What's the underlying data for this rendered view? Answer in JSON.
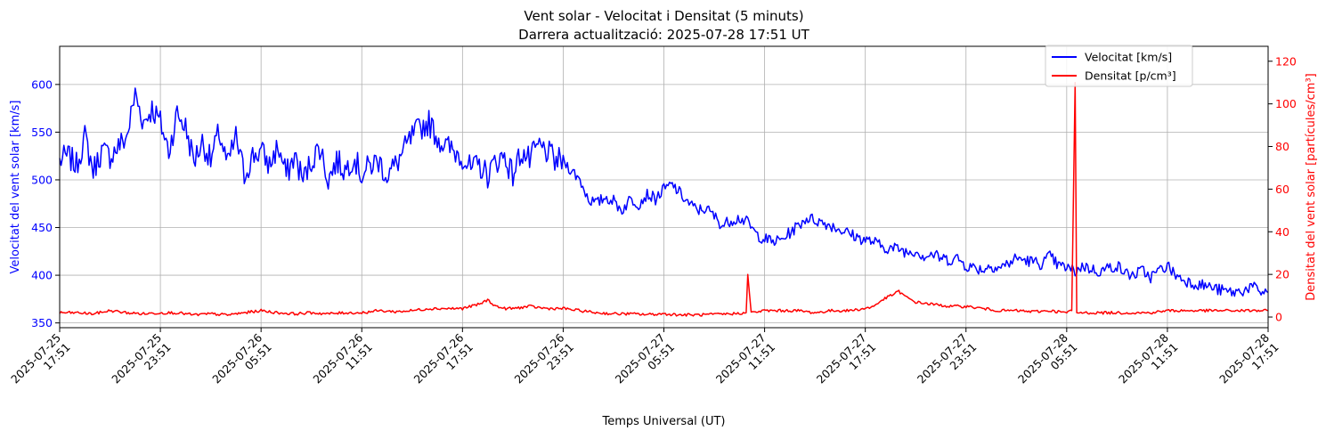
{
  "chart_data": {
    "type": "line",
    "title": "Vent solar - Velocitat i Densitat (5 minuts)",
    "subtitle": "Darrera actualització: 2025-07-28 17:51 UT",
    "xlabel": "Temps Universal (UT)",
    "ylabel_left": "Velocitat del vent solar [km/s]",
    "ylabel_right": "Densitat del vent solar [partícules/cm³]",
    "x_ticks": [
      [
        "2025-07-25",
        "17:51"
      ],
      [
        "2025-07-25",
        "23:51"
      ],
      [
        "2025-07-26",
        "05:51"
      ],
      [
        "2025-07-26",
        "11:51"
      ],
      [
        "2025-07-26",
        "17:51"
      ],
      [
        "2025-07-26",
        "23:51"
      ],
      [
        "2025-07-27",
        "05:51"
      ],
      [
        "2025-07-27",
        "11:51"
      ],
      [
        "2025-07-27",
        "17:51"
      ],
      [
        "2025-07-27",
        "23:51"
      ],
      [
        "2025-07-28",
        "05:51"
      ],
      [
        "2025-07-28",
        "11:51"
      ],
      [
        "2025-07-28",
        "17:51"
      ]
    ],
    "x_unit": "hours from 2025-07-25 17:51 UT",
    "xlim": [
      0,
      72
    ],
    "ylim_left": [
      345,
      640
    ],
    "yticks_left": [
      350,
      400,
      450,
      500,
      550,
      600
    ],
    "ylim_right": [
      -5,
      127
    ],
    "yticks_right": [
      0,
      20,
      40,
      60,
      80,
      100,
      120
    ],
    "grid": true,
    "legend_position": "top-right",
    "series": [
      {
        "name": "Velocitat [km/s]",
        "axis": "left",
        "color": "#0000ff",
        "points": [
          [
            0,
            520
          ],
          [
            0.5,
            525
          ],
          [
            1,
            515
          ],
          [
            1.5,
            545
          ],
          [
            2,
            510
          ],
          [
            2.5,
            530
          ],
          [
            3,
            525
          ],
          [
            3.5,
            535
          ],
          [
            4,
            545
          ],
          [
            4.5,
            590
          ],
          [
            5,
            560
          ],
          [
            5.5,
            575
          ],
          [
            6,
            560
          ],
          [
            6.5,
            530
          ],
          [
            7,
            570
          ],
          [
            7.5,
            555
          ],
          [
            8,
            520
          ],
          [
            8.5,
            540
          ],
          [
            9,
            520
          ],
          [
            9.5,
            550
          ],
          [
            10,
            515
          ],
          [
            10.5,
            545
          ],
          [
            11,
            505
          ],
          [
            11.5,
            525
          ],
          [
            12,
            530
          ],
          [
            12.5,
            515
          ],
          [
            13,
            535
          ],
          [
            13.5,
            505
          ],
          [
            14,
            525
          ],
          [
            14.5,
            500
          ],
          [
            15,
            520
          ],
          [
            15.5,
            535
          ],
          [
            16,
            500
          ],
          [
            16.5,
            520
          ],
          [
            17,
            510
          ],
          [
            17.5,
            525
          ],
          [
            18,
            505
          ],
          [
            18.5,
            515
          ],
          [
            19,
            520
          ],
          [
            19.5,
            505
          ],
          [
            20,
            515
          ],
          [
            20.5,
            530
          ],
          [
            21,
            545
          ],
          [
            21.5,
            555
          ],
          [
            22,
            560
          ],
          [
            22.5,
            545
          ],
          [
            23,
            535
          ],
          [
            23.5,
            530
          ],
          [
            24,
            525
          ],
          [
            24.5,
            510
          ],
          [
            25,
            515
          ],
          [
            25.5,
            505
          ],
          [
            26,
            520
          ],
          [
            26.5,
            525
          ],
          [
            27,
            505
          ],
          [
            27.5,
            530
          ],
          [
            28,
            520
          ],
          [
            28.5,
            535
          ],
          [
            29,
            530
          ],
          [
            29.5,
            520
          ],
          [
            30,
            520
          ],
          [
            30.5,
            510
          ],
          [
            31,
            500
          ],
          [
            31.5,
            480
          ],
          [
            32,
            475
          ],
          [
            32.5,
            482
          ],
          [
            33,
            478
          ],
          [
            33.5,
            468
          ],
          [
            34,
            480
          ],
          [
            34.5,
            475
          ],
          [
            35,
            485
          ],
          [
            35.5,
            480
          ],
          [
            36,
            490
          ],
          [
            36.5,
            495
          ],
          [
            37,
            485
          ],
          [
            37.5,
            475
          ],
          [
            38,
            468
          ],
          [
            38.5,
            470
          ],
          [
            39,
            462
          ],
          [
            39.5,
            452
          ],
          [
            40,
            458
          ],
          [
            40.5,
            460
          ],
          [
            41,
            455
          ],
          [
            41.5,
            443
          ],
          [
            42,
            438
          ],
          [
            42.5,
            435
          ],
          [
            43,
            437
          ],
          [
            44,
            452
          ],
          [
            44.5,
            460
          ],
          [
            45,
            458
          ],
          [
            45.5,
            455
          ],
          [
            46,
            452
          ],
          [
            46.5,
            448
          ],
          [
            47,
            444
          ],
          [
            47.5,
            440
          ],
          [
            48,
            437
          ],
          [
            48.5,
            435
          ],
          [
            49,
            430
          ],
          [
            49.5,
            428
          ],
          [
            50,
            428
          ],
          [
            50.5,
            424
          ],
          [
            51,
            426
          ],
          [
            51.5,
            420
          ],
          [
            52,
            422
          ],
          [
            52.5,
            418
          ],
          [
            53,
            416
          ],
          [
            53.5,
            418
          ],
          [
            54,
            410
          ],
          [
            54.5,
            408
          ],
          [
            55,
            406
          ],
          [
            55.5,
            410
          ],
          [
            56,
            408
          ],
          [
            56.5,
            412
          ],
          [
            57,
            418
          ],
          [
            57.5,
            416
          ],
          [
            58,
            414
          ],
          [
            58.5,
            412
          ],
          [
            59,
            420
          ],
          [
            59.5,
            410
          ],
          [
            60,
            408
          ],
          [
            60.5,
            404
          ],
          [
            61,
            410
          ],
          [
            61.5,
            406
          ],
          [
            62,
            404
          ],
          [
            62.5,
            408
          ],
          [
            63,
            410
          ],
          [
            63.5,
            402
          ],
          [
            64,
            400
          ],
          [
            64.5,
            405
          ],
          [
            65,
            398
          ],
          [
            65.5,
            405
          ],
          [
            66,
            410
          ],
          [
            66.5,
            400
          ],
          [
            67,
            395
          ],
          [
            67.5,
            392
          ],
          [
            68,
            390
          ],
          [
            68.5,
            388
          ],
          [
            69,
            385
          ],
          [
            69.5,
            383
          ],
          [
            70,
            382
          ],
          [
            70.5,
            384
          ],
          [
            71,
            388
          ],
          [
            71.5,
            383
          ],
          [
            72,
            382
          ]
        ]
      },
      {
        "name": "Densitat [p/cm³]",
        "axis": "right",
        "color": "#ff0000",
        "points": [
          [
            0,
            2
          ],
          [
            1,
            2
          ],
          [
            2,
            1.5
          ],
          [
            3,
            3
          ],
          [
            4,
            2
          ],
          [
            5,
            1.5
          ],
          [
            6,
            2
          ],
          [
            7,
            2
          ],
          [
            8,
            1
          ],
          [
            9,
            1.5
          ],
          [
            10,
            1
          ],
          [
            11,
            2
          ],
          [
            12,
            3
          ],
          [
            13,
            2
          ],
          [
            14,
            1.5
          ],
          [
            15,
            2
          ],
          [
            16,
            1.5
          ],
          [
            17,
            2
          ],
          [
            18,
            2
          ],
          [
            19,
            3
          ],
          [
            20,
            2.5
          ],
          [
            21,
            3
          ],
          [
            22,
            4
          ],
          [
            23,
            4
          ],
          [
            24,
            4
          ],
          [
            24.5,
            5
          ],
          [
            25,
            6
          ],
          [
            25.5,
            8
          ],
          [
            26,
            5
          ],
          [
            26.5,
            4
          ],
          [
            27,
            4
          ],
          [
            28,
            5
          ],
          [
            29,
            4
          ],
          [
            30,
            4
          ],
          [
            31,
            3
          ],
          [
            32,
            2
          ],
          [
            33,
            1.5
          ],
          [
            34,
            1.5
          ],
          [
            35,
            1.2
          ],
          [
            36,
            1.5
          ],
          [
            37,
            1
          ],
          [
            38,
            1
          ],
          [
            39,
            1.2
          ],
          [
            40,
            1.5
          ],
          [
            40.9,
            2
          ],
          [
            41,
            20
          ],
          [
            41.2,
            2
          ],
          [
            42,
            3
          ],
          [
            43,
            3
          ],
          [
            44,
            3
          ],
          [
            45,
            2
          ],
          [
            46,
            3
          ],
          [
            47,
            3
          ],
          [
            48,
            4
          ],
          [
            48.5,
            5
          ],
          [
            49,
            8
          ],
          [
            49.5,
            10
          ],
          [
            50,
            12
          ],
          [
            50.5,
            9
          ],
          [
            51,
            7
          ],
          [
            52,
            6
          ],
          [
            53,
            5
          ],
          [
            54,
            5
          ],
          [
            55,
            4
          ],
          [
            56,
            3
          ],
          [
            57,
            3
          ],
          [
            58,
            2.5
          ],
          [
            59,
            3
          ],
          [
            60,
            2
          ],
          [
            60.3,
            3
          ],
          [
            60.5,
            110
          ],
          [
            60.6,
            2
          ],
          [
            61,
            2
          ],
          [
            62,
            2
          ],
          [
            63,
            2
          ],
          [
            64,
            2
          ],
          [
            65,
            2
          ],
          [
            66,
            3
          ],
          [
            67,
            3
          ],
          [
            68,
            3
          ],
          [
            69,
            3
          ],
          [
            70,
            3
          ],
          [
            71,
            3
          ],
          [
            72,
            3
          ]
        ]
      }
    ]
  }
}
